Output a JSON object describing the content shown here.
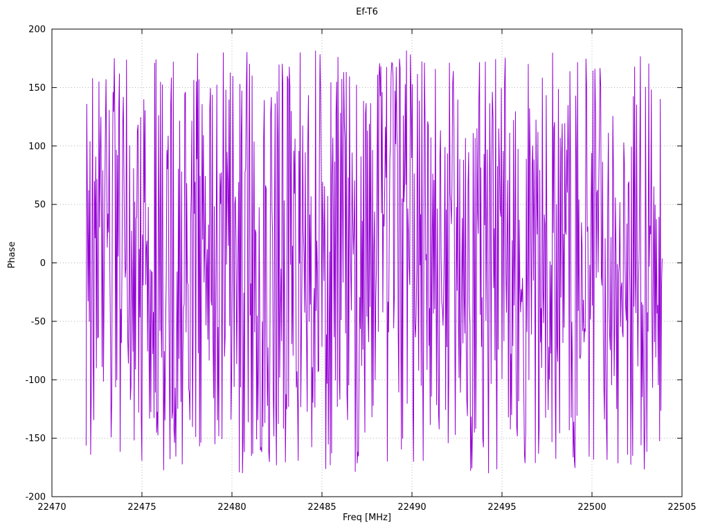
{
  "title": "Ef-T6",
  "chart_data": {
    "type": "line",
    "title": "Ef-T6",
    "xlabel": "Freq [MHz]",
    "ylabel": "Phase",
    "xlim": [
      22470,
      22505
    ],
    "ylim": [
      -200,
      200
    ],
    "x_ticks": [
      22470,
      22475,
      22480,
      22485,
      22490,
      22495,
      22500,
      22505
    ],
    "y_ticks": [
      -200,
      -150,
      -100,
      -50,
      0,
      50,
      100,
      150,
      200
    ],
    "grid": true,
    "legend": "none",
    "line_color": "#9400d3",
    "series": [
      {
        "name": "phase",
        "color": "#9400d3",
        "x_start": 22471.9,
        "x_end": 22503.9,
        "n_points": 900,
        "y_distribution": "uniform-random",
        "y_min": -180,
        "y_max": 182,
        "seed": 987654321
      }
    ]
  }
}
